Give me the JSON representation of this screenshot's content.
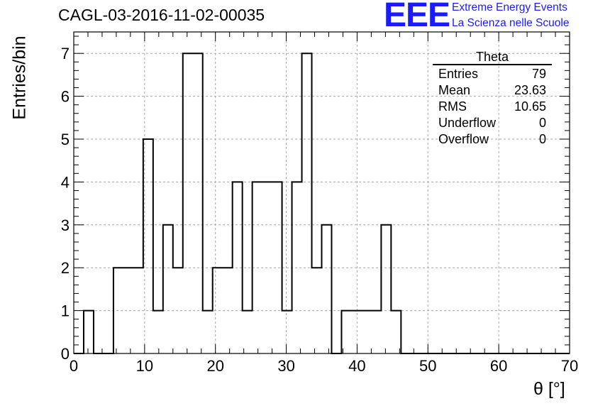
{
  "chart_data": {
    "type": "histogram",
    "title": "CAGL-03-2016-11-02-00035",
    "xlabel": "θ [°]",
    "ylabel": "Entries/bin",
    "xlim": [
      0,
      70
    ],
    "ylim": [
      0,
      7.5
    ],
    "grid": true,
    "bin_width": 1.4,
    "bin_edges_start": 0,
    "values": [
      0,
      1,
      0,
      0,
      2,
      2,
      2,
      5,
      1,
      3,
      2,
      7,
      7,
      1,
      2,
      2,
      4,
      1,
      4,
      4,
      4,
      1,
      4,
      7,
      2,
      3,
      0,
      1,
      1,
      1,
      1,
      3,
      1,
      0,
      0,
      0,
      0,
      0,
      0,
      0,
      0,
      0,
      0,
      0,
      0,
      0,
      0,
      0,
      0,
      0
    ],
    "xticks": [
      "0",
      "10",
      "20",
      "30",
      "40",
      "50",
      "60",
      "70"
    ],
    "yticks": [
      "0",
      "1",
      "2",
      "3",
      "4",
      "5",
      "6",
      "7"
    ]
  },
  "stats_box": {
    "title": "Theta",
    "rows": [
      {
        "label": "Entries",
        "value": "79"
      },
      {
        "label": "Mean",
        "value": "23.63"
      },
      {
        "label": "RMS",
        "value": "10.65"
      },
      {
        "label": "Underflow",
        "value": "0"
      },
      {
        "label": "Overflow",
        "value": "0"
      }
    ]
  },
  "logo": {
    "mark": "EEE",
    "line1": "Extreme Energy Events",
    "line2": "La Scienza nelle Scuole",
    "color": "#1b1bff"
  }
}
